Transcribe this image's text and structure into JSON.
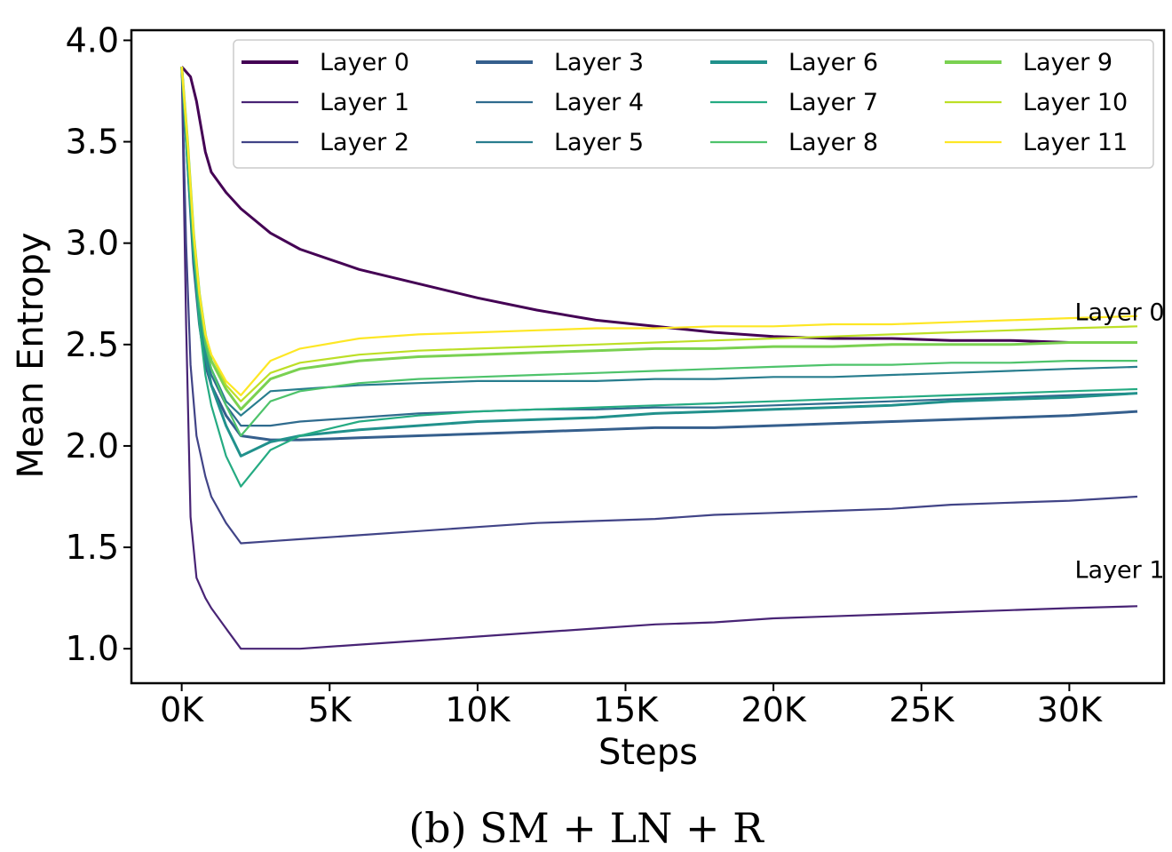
{
  "caption": "(b) SM + LN + R",
  "chart_data": {
    "type": "line",
    "xlabel": "Steps",
    "ylabel": "Mean Entropy",
    "xlim": [
      -1700,
      33200
    ],
    "ylim": [
      0.83,
      4.05
    ],
    "x_ticks": [
      0,
      5000,
      10000,
      15000,
      20000,
      25000,
      30000
    ],
    "x_tick_labels": [
      "0K",
      "5K",
      "10K",
      "15K",
      "20K",
      "25K",
      "30K"
    ],
    "y_ticks": [
      1.0,
      1.5,
      2.0,
      2.5,
      3.0,
      3.5,
      4.0
    ],
    "y_tick_labels": [
      "1.0",
      "1.5",
      "2.0",
      "2.5",
      "3.0",
      "3.5",
      "4.0"
    ],
    "grid": false,
    "legend_position": "top-right",
    "legend_columns": 4,
    "annotations": [
      {
        "text": "Layer 0",
        "x": 31700,
        "y": 2.62
      },
      {
        "text": "Layer 1",
        "x": 31700,
        "y": 1.35
      }
    ],
    "series": [
      {
        "name": "Layer 0",
        "color": "#440154",
        "bold": true,
        "x": [
          0,
          300,
          500,
          800,
          1000,
          1500,
          2000,
          3000,
          4000,
          5000,
          6000,
          8000,
          10000,
          12000,
          14000,
          16000,
          18000,
          20000,
          22000,
          24000,
          26000,
          28000,
          30000,
          32300
        ],
        "y": [
          3.87,
          3.82,
          3.7,
          3.45,
          3.35,
          3.25,
          3.17,
          3.05,
          2.97,
          2.92,
          2.87,
          2.8,
          2.73,
          2.67,
          2.62,
          2.59,
          2.56,
          2.54,
          2.53,
          2.53,
          2.52,
          2.52,
          2.51,
          2.51
        ]
      },
      {
        "name": "Layer 1",
        "color": "#482475",
        "x": [
          0,
          150,
          300,
          500,
          800,
          1000,
          1500,
          2000,
          3000,
          4000,
          6000,
          8000,
          10000,
          12000,
          14000,
          16000,
          18000,
          20000,
          22000,
          24000,
          26000,
          28000,
          30000,
          32300
        ],
        "y": [
          3.87,
          2.6,
          1.65,
          1.35,
          1.25,
          1.2,
          1.1,
          1.0,
          1.0,
          1.0,
          1.02,
          1.04,
          1.06,
          1.08,
          1.1,
          1.12,
          1.13,
          1.15,
          1.16,
          1.17,
          1.18,
          1.19,
          1.2,
          1.21
        ]
      },
      {
        "name": "Layer 2",
        "color": "#414487",
        "x": [
          0,
          150,
          300,
          500,
          800,
          1000,
          1500,
          2000,
          3000,
          4000,
          6000,
          8000,
          10000,
          12000,
          14000,
          16000,
          18000,
          20000,
          22000,
          24000,
          26000,
          28000,
          30000,
          32300
        ],
        "y": [
          3.87,
          3.0,
          2.4,
          2.05,
          1.85,
          1.75,
          1.62,
          1.52,
          1.53,
          1.54,
          1.56,
          1.58,
          1.6,
          1.62,
          1.63,
          1.64,
          1.66,
          1.67,
          1.68,
          1.69,
          1.71,
          1.72,
          1.73,
          1.75
        ]
      },
      {
        "name": "Layer 3",
        "color": "#355f8d",
        "bold": true,
        "x": [
          0,
          200,
          400,
          600,
          800,
          1000,
          1500,
          2000,
          3000,
          4000,
          6000,
          8000,
          10000,
          12000,
          14000,
          16000,
          18000,
          20000,
          22000,
          24000,
          26000,
          28000,
          30000,
          32300
        ],
        "y": [
          3.87,
          3.4,
          2.9,
          2.6,
          2.4,
          2.3,
          2.15,
          2.05,
          2.03,
          2.03,
          2.04,
          2.05,
          2.06,
          2.07,
          2.08,
          2.09,
          2.09,
          2.1,
          2.11,
          2.12,
          2.13,
          2.14,
          2.15,
          2.17
        ]
      },
      {
        "name": "Layer 4",
        "color": "#2f6b8e",
        "x": [
          0,
          200,
          400,
          600,
          800,
          1000,
          1500,
          2000,
          3000,
          4000,
          6000,
          8000,
          10000,
          12000,
          14000,
          16000,
          18000,
          20000,
          22000,
          24000,
          26000,
          28000,
          30000,
          32300
        ],
        "y": [
          3.87,
          3.4,
          2.95,
          2.65,
          2.45,
          2.35,
          2.2,
          2.1,
          2.1,
          2.12,
          2.14,
          2.16,
          2.17,
          2.18,
          2.18,
          2.19,
          2.19,
          2.2,
          2.21,
          2.22,
          2.23,
          2.24,
          2.25,
          2.26
        ]
      },
      {
        "name": "Layer 5",
        "color": "#287d8e",
        "x": [
          0,
          200,
          400,
          600,
          800,
          1000,
          1500,
          2000,
          3000,
          4000,
          6000,
          8000,
          10000,
          12000,
          14000,
          16000,
          18000,
          20000,
          22000,
          24000,
          26000,
          28000,
          30000,
          32300
        ],
        "y": [
          3.87,
          3.4,
          2.95,
          2.65,
          2.48,
          2.38,
          2.22,
          2.15,
          2.27,
          2.28,
          2.3,
          2.31,
          2.32,
          2.32,
          2.32,
          2.33,
          2.33,
          2.34,
          2.34,
          2.35,
          2.36,
          2.37,
          2.38,
          2.39
        ]
      },
      {
        "name": "Layer 6",
        "color": "#21918c",
        "bold": true,
        "x": [
          0,
          200,
          400,
          600,
          800,
          1000,
          1500,
          2000,
          3000,
          4000,
          6000,
          8000,
          10000,
          12000,
          14000,
          16000,
          18000,
          20000,
          22000,
          24000,
          26000,
          28000,
          30000,
          32300
        ],
        "y": [
          3.87,
          3.4,
          2.95,
          2.65,
          2.45,
          2.3,
          2.1,
          1.95,
          2.02,
          2.05,
          2.08,
          2.1,
          2.12,
          2.13,
          2.14,
          2.16,
          2.17,
          2.18,
          2.19,
          2.2,
          2.22,
          2.23,
          2.24,
          2.26
        ]
      },
      {
        "name": "Layer 7",
        "color": "#25ab82",
        "x": [
          0,
          200,
          400,
          600,
          800,
          1000,
          1500,
          2000,
          3000,
          4000,
          6000,
          8000,
          10000,
          12000,
          14000,
          16000,
          18000,
          20000,
          22000,
          24000,
          26000,
          28000,
          30000,
          32300
        ],
        "y": [
          3.87,
          3.4,
          2.95,
          2.6,
          2.35,
          2.2,
          1.95,
          1.8,
          1.98,
          2.05,
          2.12,
          2.15,
          2.17,
          2.18,
          2.19,
          2.2,
          2.21,
          2.22,
          2.23,
          2.24,
          2.25,
          2.26,
          2.27,
          2.28
        ]
      },
      {
        "name": "Layer 8",
        "color": "#4ec36b",
        "x": [
          0,
          200,
          400,
          600,
          800,
          1000,
          1500,
          2000,
          3000,
          4000,
          6000,
          8000,
          10000,
          12000,
          14000,
          16000,
          18000,
          20000,
          22000,
          24000,
          26000,
          28000,
          30000,
          32300
        ],
        "y": [
          3.87,
          3.45,
          3.0,
          2.7,
          2.5,
          2.38,
          2.2,
          2.05,
          2.22,
          2.27,
          2.31,
          2.33,
          2.34,
          2.35,
          2.36,
          2.37,
          2.38,
          2.39,
          2.4,
          2.4,
          2.41,
          2.41,
          2.42,
          2.42
        ]
      },
      {
        "name": "Layer 9",
        "color": "#7ad151",
        "bold": true,
        "x": [
          0,
          200,
          400,
          600,
          800,
          1000,
          1500,
          2000,
          3000,
          4000,
          6000,
          8000,
          10000,
          12000,
          14000,
          16000,
          18000,
          20000,
          22000,
          24000,
          26000,
          28000,
          30000,
          32300
        ],
        "y": [
          3.87,
          3.5,
          3.05,
          2.75,
          2.55,
          2.42,
          2.28,
          2.18,
          2.33,
          2.38,
          2.42,
          2.44,
          2.45,
          2.46,
          2.47,
          2.48,
          2.48,
          2.49,
          2.49,
          2.5,
          2.5,
          2.5,
          2.51,
          2.51
        ]
      },
      {
        "name": "Layer 10",
        "color": "#bddf26",
        "x": [
          0,
          200,
          400,
          600,
          800,
          1000,
          1500,
          2000,
          3000,
          4000,
          6000,
          8000,
          10000,
          12000,
          14000,
          16000,
          18000,
          20000,
          22000,
          24000,
          26000,
          28000,
          30000,
          32300
        ],
        "y": [
          3.87,
          3.5,
          3.05,
          2.75,
          2.55,
          2.45,
          2.3,
          2.22,
          2.36,
          2.41,
          2.45,
          2.47,
          2.48,
          2.49,
          2.5,
          2.51,
          2.52,
          2.53,
          2.54,
          2.55,
          2.56,
          2.57,
          2.58,
          2.59
        ]
      },
      {
        "name": "Layer 11",
        "color": "#fde725",
        "x": [
          0,
          200,
          400,
          600,
          800,
          1000,
          1500,
          2000,
          3000,
          4000,
          6000,
          8000,
          10000,
          12000,
          14000,
          16000,
          18000,
          20000,
          22000,
          24000,
          26000,
          28000,
          30000,
          32300
        ],
        "y": [
          3.87,
          3.5,
          3.05,
          2.75,
          2.55,
          2.45,
          2.32,
          2.25,
          2.42,
          2.48,
          2.53,
          2.55,
          2.56,
          2.57,
          2.58,
          2.58,
          2.59,
          2.59,
          2.6,
          2.6,
          2.61,
          2.62,
          2.63,
          2.64
        ]
      }
    ]
  }
}
